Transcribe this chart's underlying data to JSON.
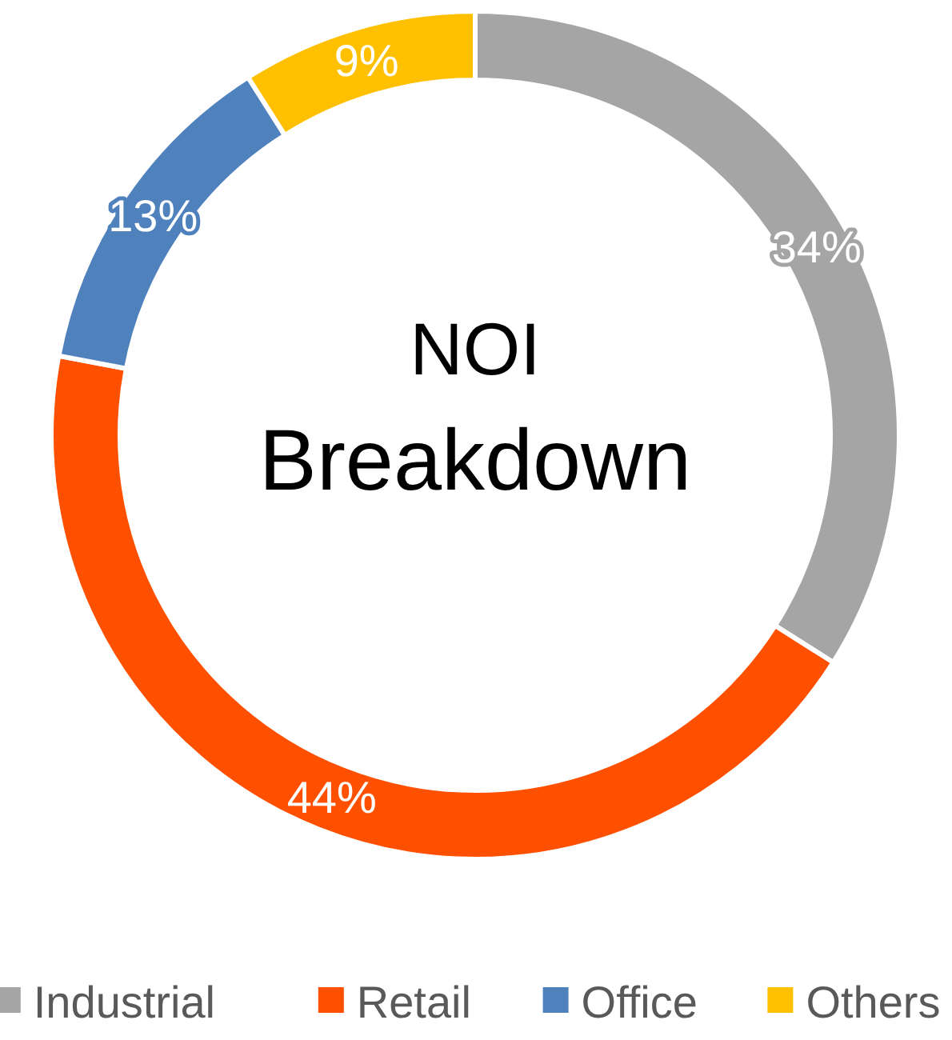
{
  "chart_data": {
    "type": "donut",
    "title": "NOI Breakdown",
    "categories": [
      "Industrial",
      "Retail",
      "Office",
      "Others"
    ],
    "values": [
      34,
      44,
      13,
      9
    ],
    "colors": [
      "#a5a5a5",
      "#ff5000",
      "#4f81bd",
      "#ffc000"
    ],
    "value_labels": [
      "34%",
      "44%",
      "13%",
      "9%"
    ],
    "legend": "bottom"
  }
}
